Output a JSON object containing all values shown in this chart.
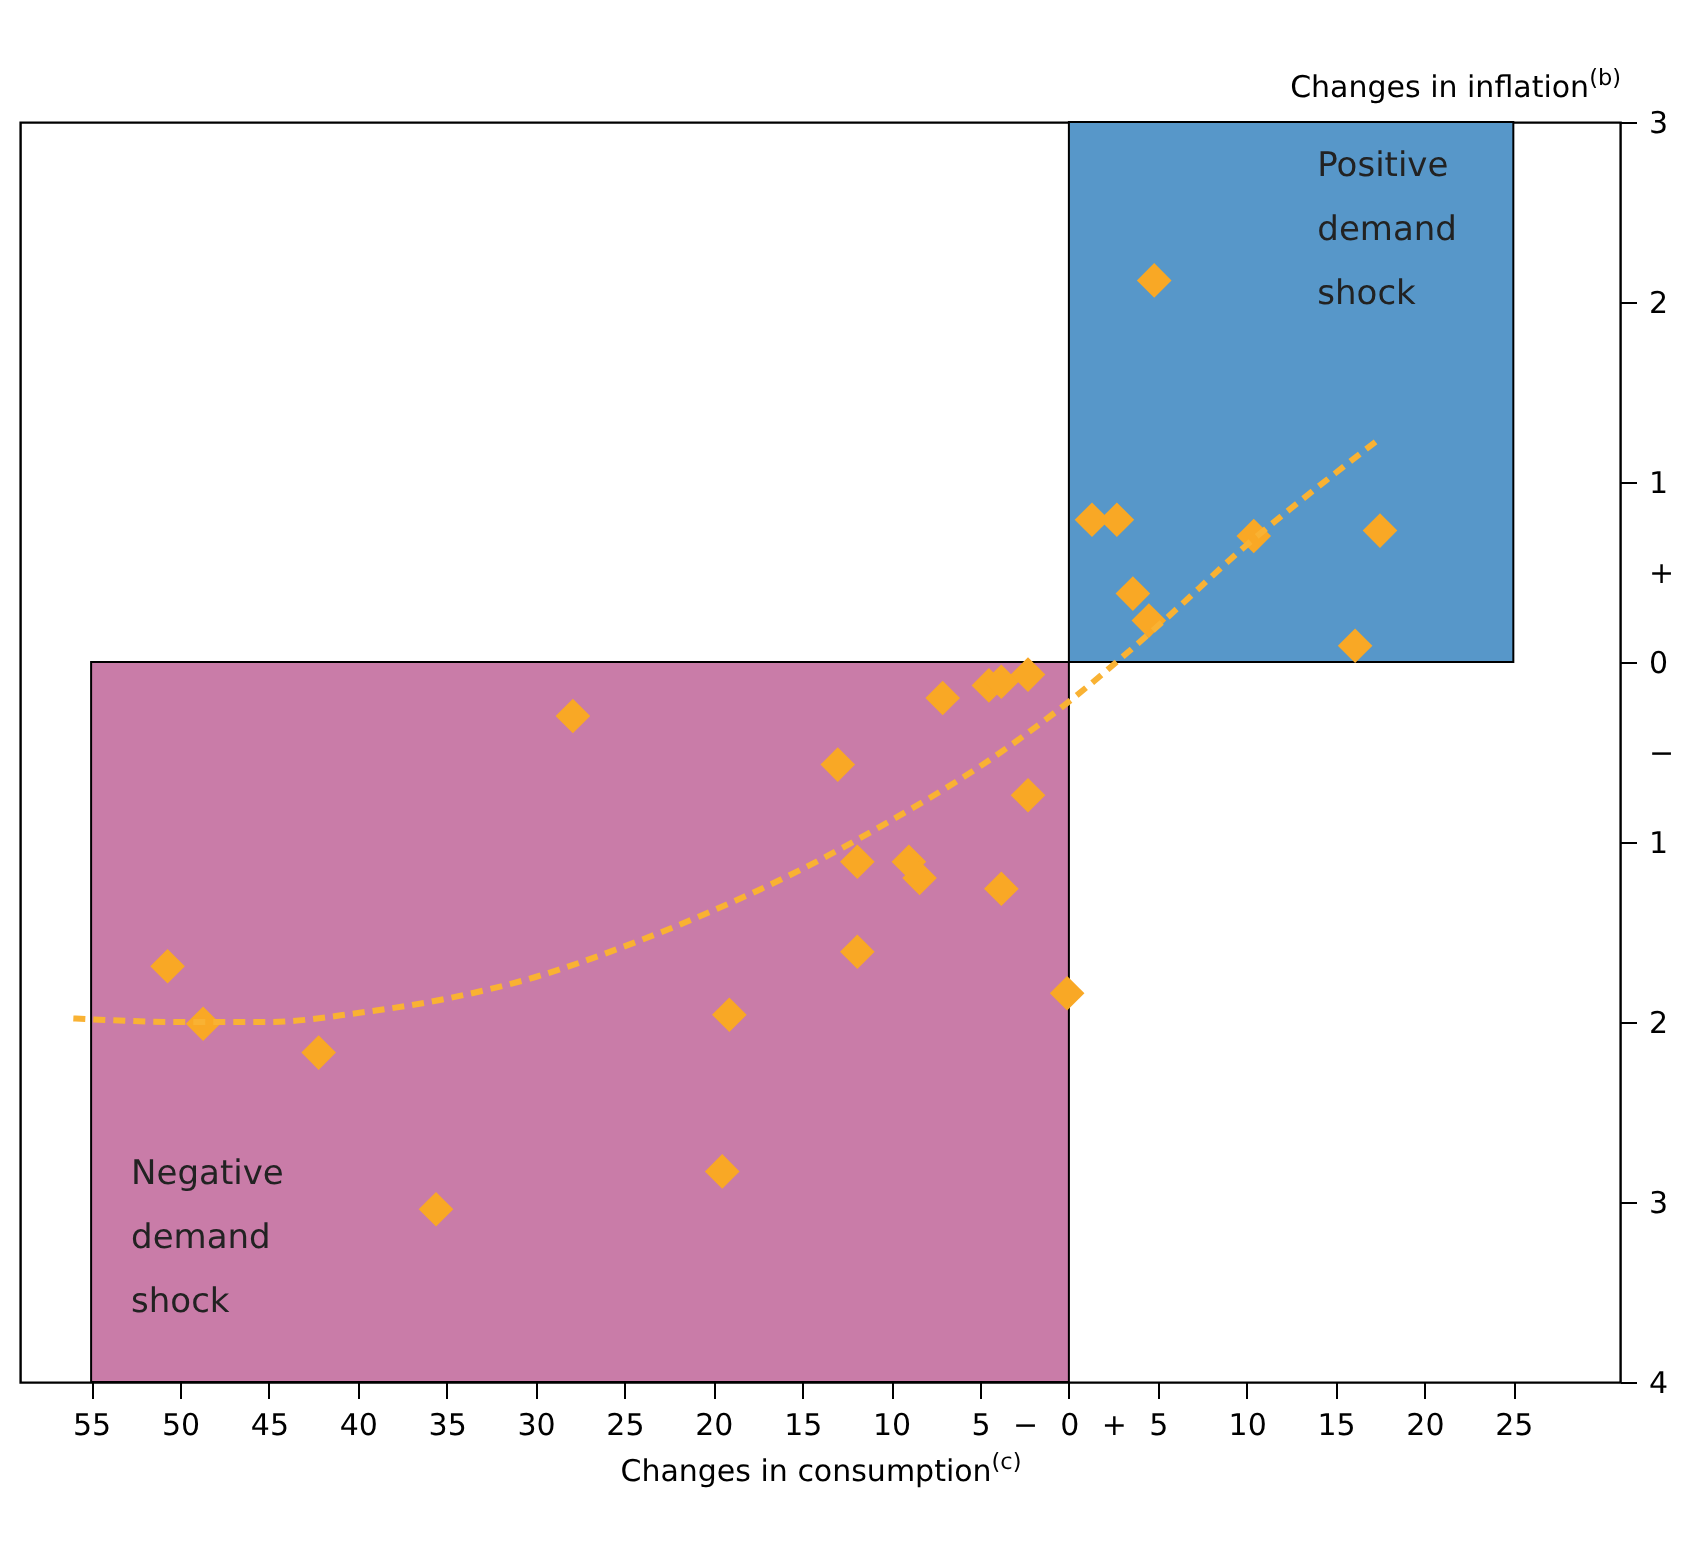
{
  "chart_data": {
    "type": "scatter",
    "xlabel": "Changes in consumption$^{(c)}$",
    "ylabel": "Changes in inflation$^{(b)}$",
    "xlim": [
      -59,
      31
    ],
    "ylim": [
      -4,
      3
    ],
    "xticks": [
      {
        "value": -55,
        "label": "55"
      },
      {
        "value": -50,
        "label": "50"
      },
      {
        "value": -45,
        "label": "45"
      },
      {
        "value": -40,
        "label": "40"
      },
      {
        "value": -35,
        "label": "35"
      },
      {
        "value": -30,
        "label": "30"
      },
      {
        "value": -25,
        "label": "25"
      },
      {
        "value": -20,
        "label": "20"
      },
      {
        "value": -15,
        "label": "15"
      },
      {
        "value": -10,
        "label": "10"
      },
      {
        "value": -5,
        "label": "5"
      },
      {
        "value": -2.5,
        "label": "−"
      },
      0,
      {
        "value": 2.5,
        "label": "+"
      },
      5,
      10,
      15,
      20,
      25
    ],
    "yticks": [
      {
        "value": -4,
        "label": "4"
      },
      {
        "value": -3,
        "label": "3"
      },
      {
        "value": -2,
        "label": "2"
      },
      {
        "value": -1,
        "label": "1"
      },
      {
        "value": -0.5,
        "label": "−"
      },
      0,
      {
        "value": 0.5,
        "label": "+"
      },
      1,
      2,
      3
    ],
    "grid": false,
    "bands": [
      {
        "axis": "x",
        "from": 0,
        "to": 25,
        "label": "Positive demand shock",
        "color": "#5797c9"
      },
      {
        "axis": "x",
        "from": -55,
        "to": 0,
        "label": "Negative demand shock",
        "color": "#c97ca8"
      }
    ],
    "series": [
      {
        "color": "#f9a825",
        "marker": "diamond",
        "x": [
          -50.7,
          -48.7,
          -42.2,
          -35.6,
          -27.9,
          -19.1,
          -19.5,
          -13.0,
          -11.9,
          -11.9,
          -9.0,
          -8.4,
          -7.1,
          -4.5,
          -3.8,
          -3.8,
          -2.3,
          -2.3,
          -0.1,
          1.3,
          2.7,
          3.6,
          4.5,
          4.8,
          10.4,
          16.1,
          17.5
        ],
        "values": [
          -1.69,
          -2.01,
          -2.17,
          -3.04,
          -0.3,
          -1.96,
          -2.83,
          -0.57,
          -1.11,
          -1.61,
          -1.11,
          -1.2,
          -0.2,
          -0.13,
          -0.11,
          -1.26,
          -0.07,
          -0.74,
          -1.84,
          0.79,
          0.79,
          0.38,
          0.23,
          2.12,
          0.7,
          0.09,
          0.73
        ]
      },
      {
        "type": "line",
        "color": "#f9b233",
        "line_style": "dashed",
        "x": [
          -56,
          -50,
          -45,
          -40,
          -35,
          -30,
          -25,
          -20,
          -15,
          -10,
          -5,
          0,
          5,
          10,
          15,
          17.6
        ],
        "values": [
          -1.98,
          -2.0,
          -2.0,
          -1.95,
          -1.87,
          -1.75,
          -1.58,
          -1.38,
          -1.15,
          -0.88,
          -0.58,
          -0.22,
          0.2,
          0.65,
          1.05,
          1.25
        ]
      }
    ]
  }
}
